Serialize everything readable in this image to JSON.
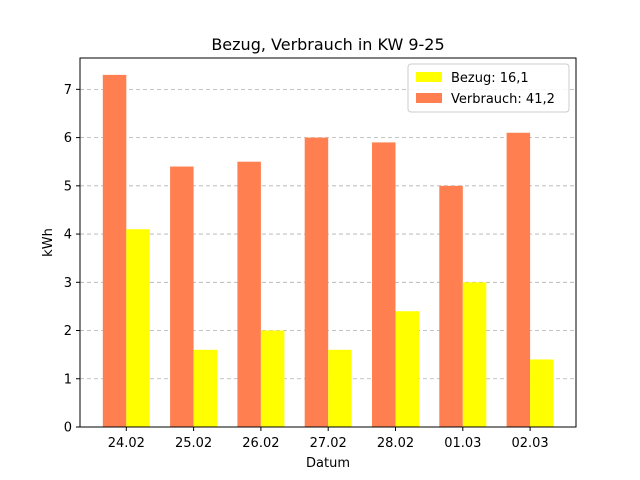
{
  "chart_data": {
    "type": "bar",
    "title": "Bezug, Verbrauch in KW 9-25",
    "xlabel": "Datum",
    "ylabel": "kWh",
    "categories": [
      "24.02",
      "25.02",
      "26.02",
      "27.02",
      "28.02",
      "01.03",
      "02.03"
    ],
    "series": [
      {
        "name": "Verbrauch: 41,2",
        "color": "#ff7f50",
        "values": [
          7.3,
          5.4,
          5.5,
          6.0,
          5.9,
          5.0,
          6.1
        ]
      },
      {
        "name": "Bezug: 16,1",
        "color": "#ffff00",
        "values": [
          4.1,
          1.6,
          2.0,
          1.6,
          2.4,
          3.0,
          1.4
        ]
      }
    ],
    "legend_order": [
      1,
      0
    ],
    "ylim": [
      0,
      7.65
    ],
    "yticks": [
      0,
      1,
      2,
      3,
      4,
      5,
      6,
      7
    ],
    "grid": "y-dashed",
    "legend_position": "top-right"
  }
}
